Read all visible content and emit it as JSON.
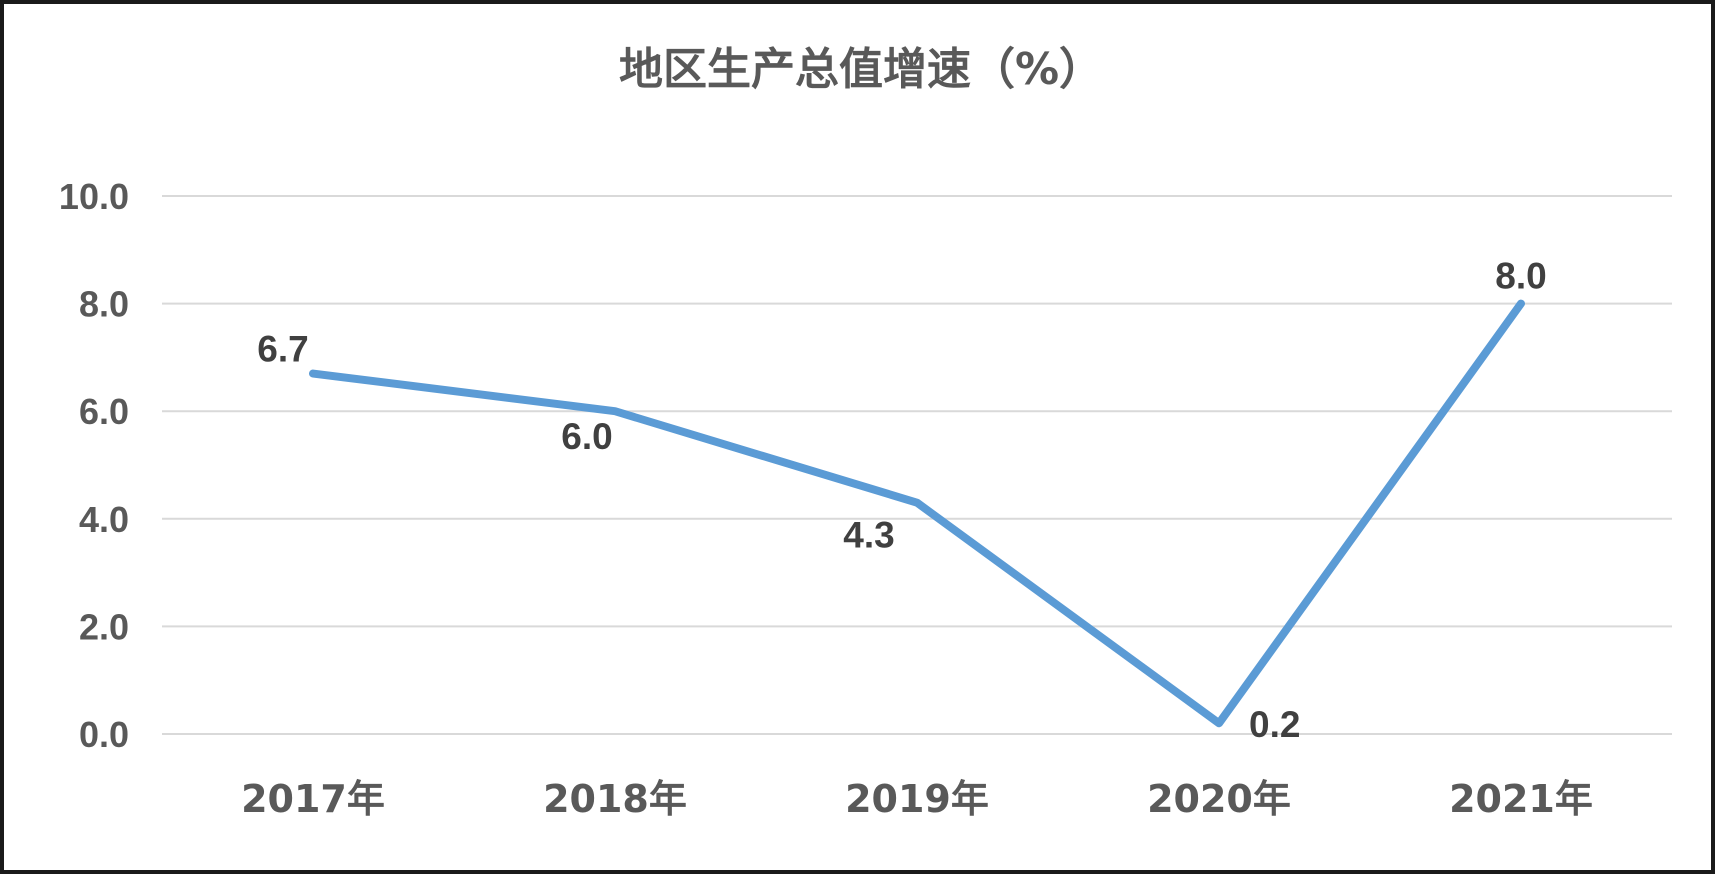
{
  "chart_data": {
    "type": "line",
    "title": "地区生产总值增速（%）",
    "categories": [
      "2017年",
      "2018年",
      "2019年",
      "2020年",
      "2021年"
    ],
    "series": [
      {
        "values": [
          6.7,
          6.0,
          4.3,
          0.2,
          8.0
        ],
        "labels": [
          "6.7",
          "6.0",
          "4.3",
          "0.2",
          "8.0"
        ],
        "color": "#5b9bd5"
      }
    ],
    "yticks": [
      "0.0",
      "2.0",
      "4.0",
      "6.0",
      "8.0",
      "10.0"
    ],
    "ylim": [
      0,
      10
    ],
    "grid": true,
    "legend": "none",
    "xlabel": "",
    "ylabel": ""
  }
}
